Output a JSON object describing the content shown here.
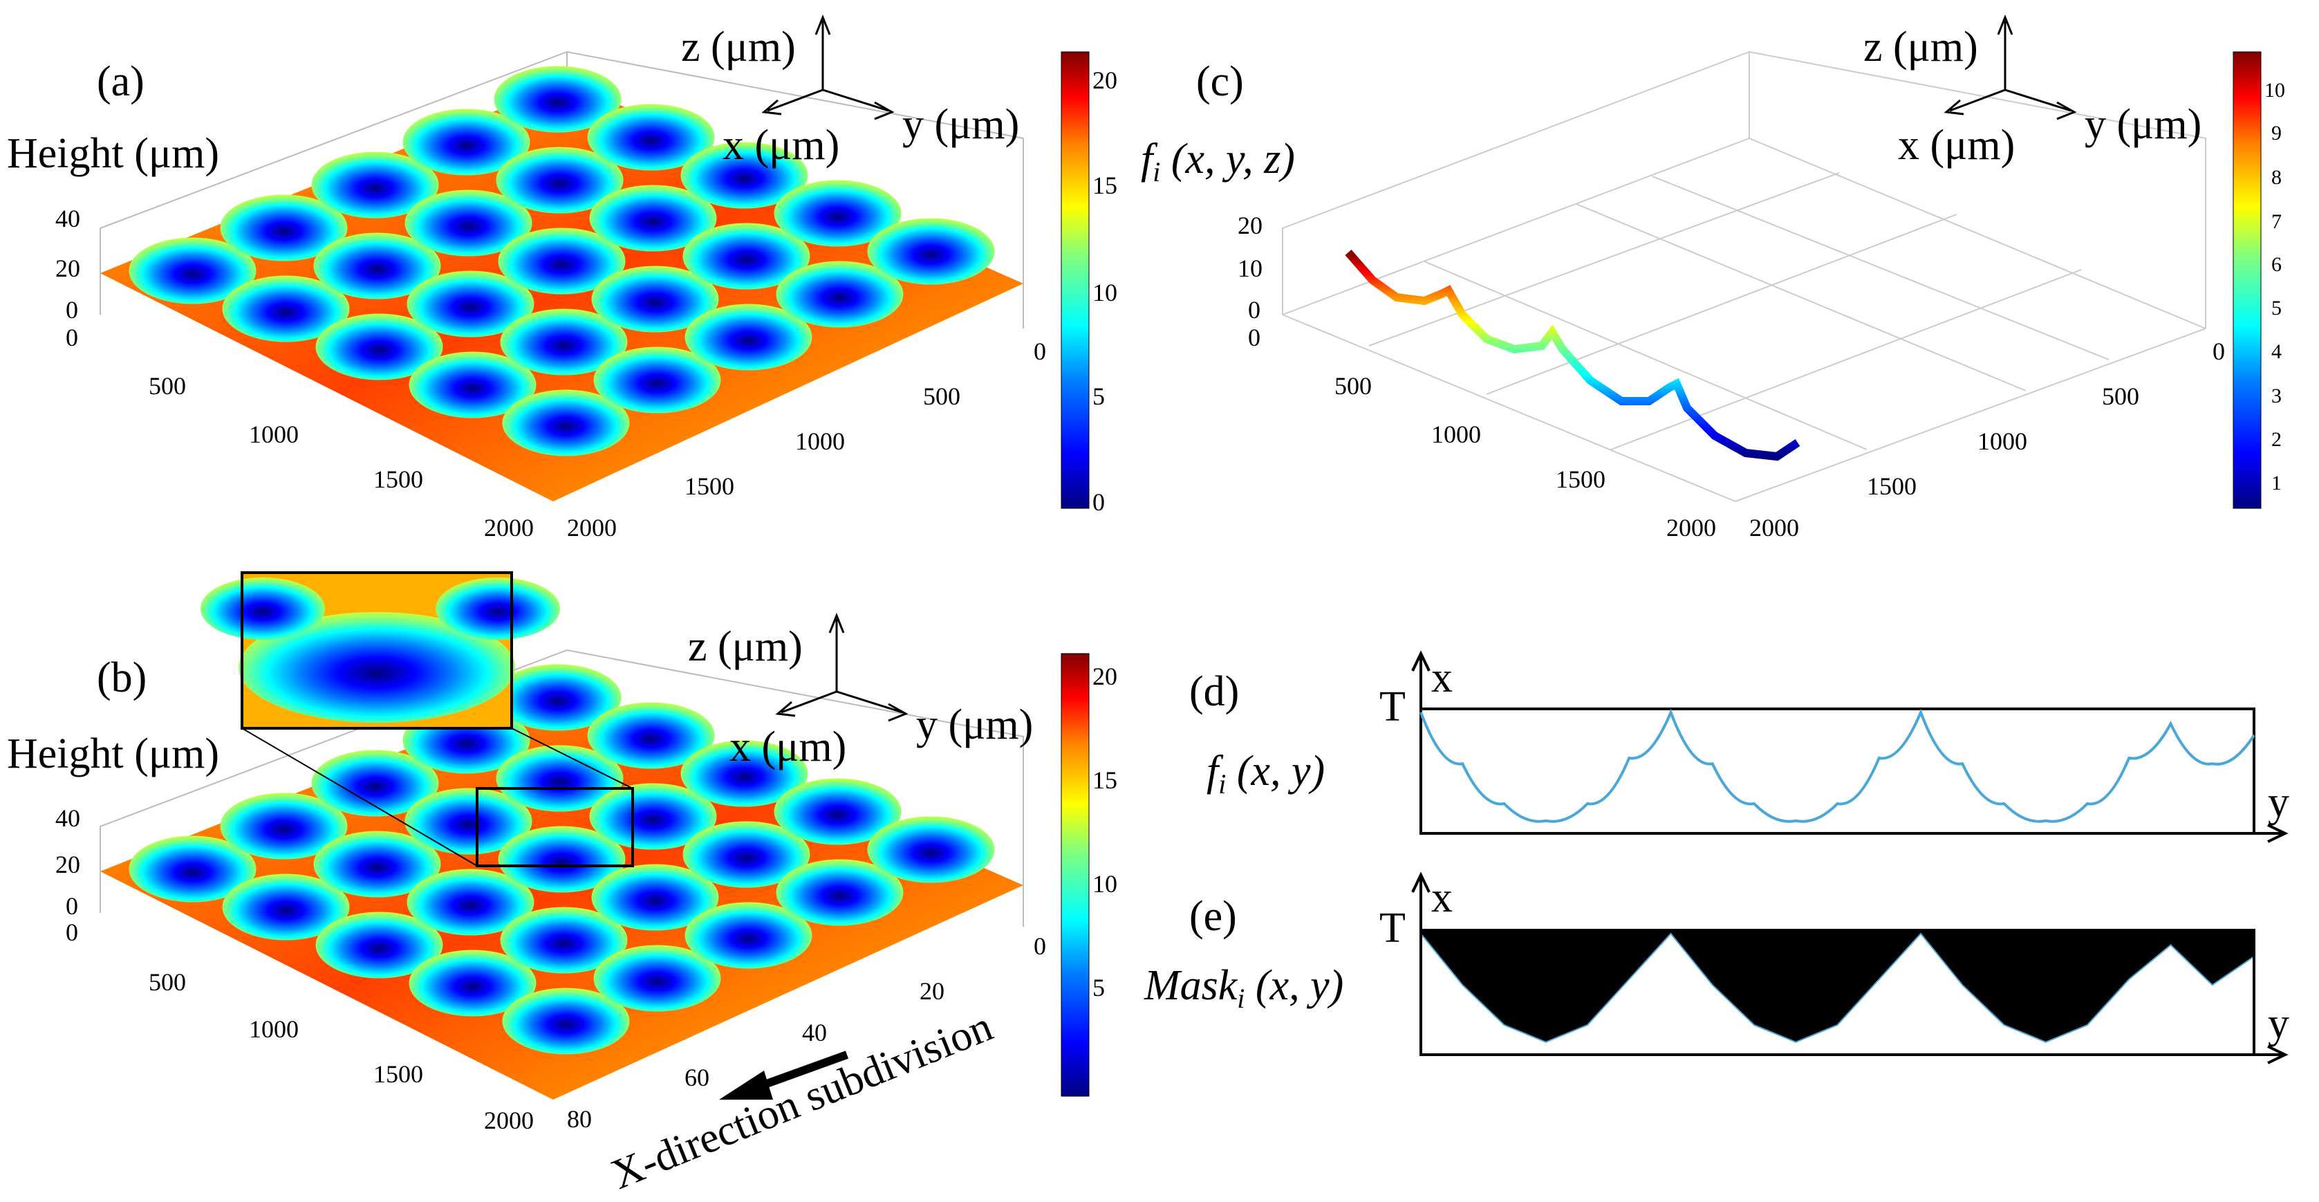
{
  "colors": {
    "ink": "#000000",
    "curve": "#4aa8d8",
    "mask": "#000000",
    "background": "#ffffff"
  },
  "colormap": [
    "#00007f",
    "#0000ff",
    "#007fff",
    "#00ffff",
    "#7fff7f",
    "#ffff00",
    "#ff7f00",
    "#ff0000",
    "#7f0000"
  ],
  "axis_triad": {
    "z": "z (μm)",
    "x": "x (μm)",
    "y": "y (μm)"
  },
  "callout": {
    "label": "X-direction subdivision"
  },
  "chart_data": [
    {
      "panel": "(a)",
      "type": "surface",
      "zlabel": "Height (μm)",
      "zticks": [
        "0",
        "20",
        "40"
      ],
      "xticks": [
        "0",
        "500",
        "1000",
        "1500",
        "2000"
      ],
      "yticks": [
        "0",
        "500",
        "1000",
        "1500",
        "2000"
      ],
      "colorbar": {
        "ticks": [
          "0",
          "5",
          "10",
          "15",
          "20"
        ],
        "range": [
          0,
          21
        ]
      },
      "grid": "5x5 hemispherical dimple array"
    },
    {
      "panel": "(b)",
      "type": "surface",
      "zlabel": "Height (μm)",
      "zticks": [
        "0",
        "20",
        "40"
      ],
      "xticks": [
        "0",
        "500",
        "1000",
        "1500",
        "2000"
      ],
      "yticks": [
        "0",
        "20",
        "40",
        "60",
        "80"
      ],
      "colorbar": {
        "ticks": [
          "5",
          "10",
          "15",
          "20"
        ],
        "range": [
          0,
          21
        ]
      },
      "inset": "zoomed surface detail"
    },
    {
      "panel": "(c)",
      "type": "line3d",
      "zlabel": "f_i (x, y, z)",
      "zticks": [
        "0",
        "10",
        "20"
      ],
      "xticks": [
        "0",
        "500",
        "1000",
        "1500",
        "2000"
      ],
      "yticks": [
        "0",
        "500",
        "1000",
        "1500",
        "2000"
      ],
      "colorbar": {
        "ticks": [
          "1",
          "2",
          "3",
          "4",
          "5",
          "6",
          "7",
          "8",
          "9",
          "10"
        ],
        "range": [
          0.5,
          10.8
        ]
      },
      "description": "single profile slice through 4 dimples"
    },
    {
      "panel": "(d)",
      "type": "line",
      "label": "f_i (x, y)",
      "x_axis": "y",
      "y_axis": "x",
      "top_level": "T",
      "y": [
        0,
        0.5,
        1,
        1.5,
        2,
        2.5,
        3,
        3.5,
        4,
        4.5,
        5,
        5.5,
        6,
        6.5,
        7,
        7.5,
        8,
        8.5,
        9,
        9.5,
        10
      ],
      "values": [
        1.0,
        0.55,
        0.2,
        0.05,
        0.2,
        0.6,
        1.0,
        0.55,
        0.2,
        0.05,
        0.2,
        0.6,
        1.0,
        0.55,
        0.2,
        0.05,
        0.2,
        0.6,
        0.9,
        0.55,
        0.8
      ]
    },
    {
      "panel": "(e)",
      "type": "area",
      "label": "Mask_i (x, y)",
      "x_axis": "y",
      "y_axis": "x",
      "top_level": "T",
      "fill": "black below T, above f_i"
    }
  ]
}
